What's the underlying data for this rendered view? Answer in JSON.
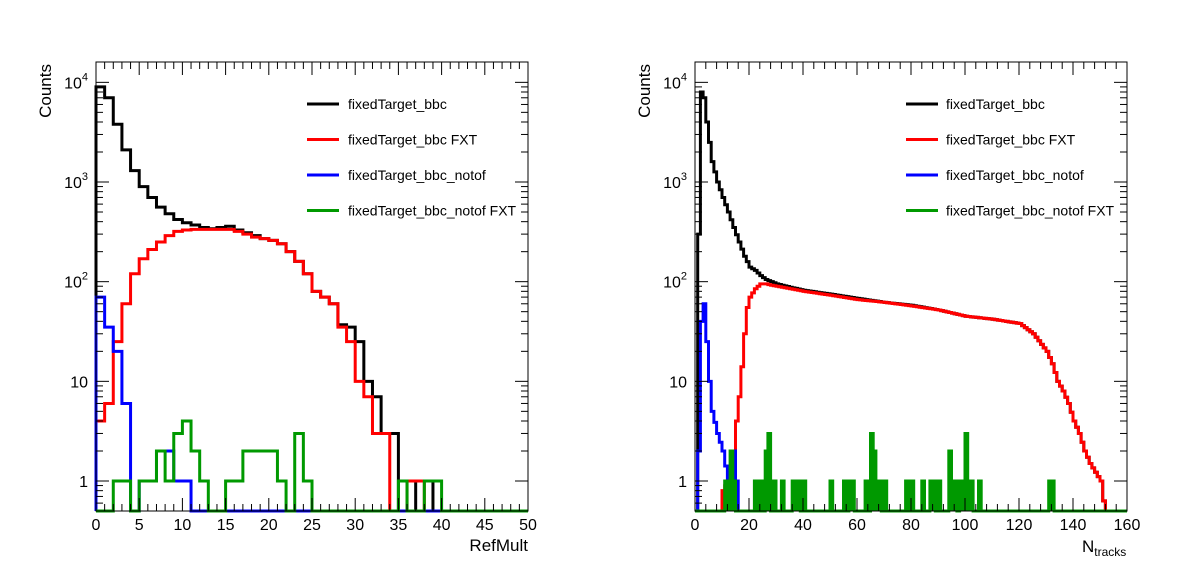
{
  "legend": {
    "position": "top-right",
    "entries": [
      {
        "label": "fixedTarget_bbc",
        "color": "#000000"
      },
      {
        "label": "fixedTarget_bbc FXT",
        "color": "#ff0000"
      },
      {
        "label": "fixedTarget_bbc_notof",
        "color": "#0000ff"
      },
      {
        "label": "fixedTarget_bbc_notof FXT",
        "color": "#009900"
      }
    ]
  },
  "chart_data": [
    {
      "type": "histogram",
      "ylabel": "Counts",
      "xlabel": "RefMult",
      "y_scale": "log",
      "xlim": [
        0,
        50
      ],
      "ylim": [
        0.5,
        16000
      ],
      "bin_width": 1,
      "x_ticks": [
        "0",
        "5",
        "10",
        "15",
        "20",
        "25",
        "30",
        "35",
        "40",
        "45",
        "50"
      ],
      "y_ticks": [
        "1",
        "10",
        "10^2",
        "10^3",
        "10^4"
      ],
      "series": [
        {
          "name": "fixedTarget_bbc",
          "color": "#000000",
          "values": [
            9000,
            7000,
            3800,
            2100,
            1300,
            900,
            700,
            560,
            480,
            420,
            390,
            370,
            350,
            340,
            350,
            360,
            330,
            310,
            290,
            270,
            260,
            240,
            200,
            160,
            120,
            80,
            70,
            60,
            37,
            35,
            25,
            10,
            7,
            3,
            3,
            0,
            0,
            1,
            1,
            0
          ]
        },
        {
          "name": "fixedTarget_bbc FXT",
          "color": "#ff0000",
          "values": [
            4,
            6,
            25,
            60,
            120,
            170,
            210,
            250,
            290,
            320,
            330,
            335,
            335,
            335,
            335,
            335,
            320,
            300,
            280,
            270,
            260,
            240,
            200,
            160,
            120,
            80,
            70,
            60,
            35,
            25,
            10,
            7,
            3,
            3,
            0,
            0,
            1,
            1,
            0
          ]
        },
        {
          "name": "fixedTarget_bbc_notof",
          "color": "#0000ff",
          "values": [
            70,
            35,
            20,
            6,
            0.4,
            1,
            1,
            2,
            2,
            1,
            1,
            0.4
          ]
        },
        {
          "name": "fixedTarget_bbc_notof FXT",
          "color": "#009900",
          "values": [
            0,
            0,
            1,
            1,
            0,
            1,
            1,
            2,
            1,
            3,
            4,
            2,
            1,
            0,
            0,
            1,
            1,
            2,
            2,
            2,
            2,
            1,
            0,
            3,
            1,
            0,
            0,
            0,
            0,
            0,
            0,
            0,
            0,
            0,
            0,
            1,
            0,
            0,
            1,
            1,
            0
          ]
        }
      ]
    },
    {
      "type": "histogram",
      "ylabel": "Counts",
      "xlabel": "N",
      "xlabel_sub": "tracks",
      "y_scale": "log",
      "xlim": [
        0,
        160
      ],
      "ylim": [
        0.5,
        16000
      ],
      "bin_width": 1,
      "x_ticks": [
        "0",
        "20",
        "40",
        "60",
        "80",
        "100",
        "120",
        "140",
        "160"
      ],
      "y_ticks": [
        "1",
        "10",
        "10^2",
        "10^3",
        "10^4"
      ],
      "series": [
        {
          "name": "fixedTarget_bbc",
          "color": "#000000",
          "anchors": [
            [
              0,
              0.4
            ],
            [
              1,
              300
            ],
            [
              2,
              8000
            ],
            [
              3,
              7000
            ],
            [
              4,
              4000
            ],
            [
              5,
              2500
            ],
            [
              6,
              1600
            ],
            [
              8,
              1000
            ],
            [
              10,
              700
            ],
            [
              12,
              500
            ],
            [
              14,
              350
            ],
            [
              16,
              250
            ],
            [
              18,
              180
            ],
            [
              20,
              140
            ],
            [
              22,
              130
            ],
            [
              24,
              115
            ],
            [
              26,
              105
            ],
            [
              28,
              100
            ],
            [
              30,
              95
            ],
            [
              35,
              88
            ],
            [
              40,
              82
            ],
            [
              50,
              75
            ],
            [
              60,
              68
            ],
            [
              70,
              62
            ],
            [
              80,
              58
            ],
            [
              90,
              52
            ],
            [
              100,
              45
            ],
            [
              110,
              42
            ],
            [
              120,
              38
            ],
            [
              125,
              30
            ],
            [
              130,
              20
            ],
            [
              132,
              15
            ],
            [
              134,
              10
            ],
            [
              136,
              8
            ],
            [
              138,
              6
            ],
            [
              140,
              4
            ],
            [
              142,
              3
            ],
            [
              144,
              2
            ],
            [
              146,
              1.5
            ],
            [
              150,
              1
            ],
            [
              152,
              0.4
            ]
          ]
        },
        {
          "name": "fixedTarget_bbc FXT",
          "color": "#ff0000",
          "anchors": [
            [
              9,
              0.4
            ],
            [
              10,
              0.8
            ],
            [
              12,
              1
            ],
            [
              14,
              2
            ],
            [
              15,
              4
            ],
            [
              16,
              7
            ],
            [
              17,
              14
            ],
            [
              18,
              30
            ],
            [
              19,
              55
            ],
            [
              20,
              70
            ],
            [
              22,
              85
            ],
            [
              24,
              95
            ],
            [
              26,
              95
            ],
            [
              28,
              92
            ],
            [
              30,
              90
            ],
            [
              35,
              85
            ],
            [
              40,
              80
            ],
            [
              50,
              73
            ],
            [
              60,
              66
            ],
            [
              70,
              62
            ],
            [
              80,
              57
            ],
            [
              90,
              52
            ],
            [
              100,
              45
            ],
            [
              110,
              42
            ],
            [
              120,
              38
            ],
            [
              125,
              30
            ],
            [
              130,
              20
            ],
            [
              132,
              15
            ],
            [
              134,
              10
            ],
            [
              136,
              8
            ],
            [
              138,
              6
            ],
            [
              140,
              4
            ],
            [
              142,
              3
            ],
            [
              144,
              2
            ],
            [
              146,
              1.5
            ],
            [
              150,
              1
            ],
            [
              152,
              0.4
            ]
          ]
        },
        {
          "name": "fixedTarget_bbc_notof",
          "color": "#0000ff",
          "anchors": [
            [
              0,
              0.4
            ],
            [
              1,
              2
            ],
            [
              2,
              40
            ],
            [
              3,
              60
            ],
            [
              4,
              25
            ],
            [
              5,
              10
            ],
            [
              6,
              5
            ],
            [
              8,
              3
            ],
            [
              10,
              2
            ],
            [
              12,
              1
            ],
            [
              14,
              2
            ],
            [
              15,
              1
            ],
            [
              16,
              0.4
            ]
          ]
        },
        {
          "name": "fixedTarget_bbc_notof FXT",
          "color": "#009900",
          "spikes": [
            [
              11,
              1
            ],
            [
              12,
              1
            ],
            [
              13,
              2
            ],
            [
              14,
              1
            ],
            [
              22,
              1
            ],
            [
              24,
              1
            ],
            [
              26,
              2
            ],
            [
              27,
              3
            ],
            [
              29,
              1
            ],
            [
              32,
              1
            ],
            [
              36,
              1
            ],
            [
              37,
              1
            ],
            [
              38,
              1
            ],
            [
              40,
              1
            ],
            [
              50,
              1
            ],
            [
              55,
              1
            ],
            [
              57,
              1
            ],
            [
              58,
              1
            ],
            [
              63,
              1
            ],
            [
              65,
              3
            ],
            [
              66,
              2
            ],
            [
              67,
              1
            ],
            [
              68,
              1
            ],
            [
              70,
              1
            ],
            [
              78,
              1
            ],
            [
              80,
              1
            ],
            [
              84,
              1
            ],
            [
              87,
              1
            ],
            [
              88,
              1
            ],
            [
              90,
              1
            ],
            [
              94,
              2
            ],
            [
              95,
              1
            ],
            [
              96,
              1
            ],
            [
              98,
              1
            ],
            [
              99,
              1
            ],
            [
              100,
              3
            ],
            [
              101,
              1
            ],
            [
              102,
              1
            ],
            [
              105,
              1
            ],
            [
              131,
              1
            ],
            [
              132,
              1
            ]
          ]
        }
      ]
    }
  ]
}
